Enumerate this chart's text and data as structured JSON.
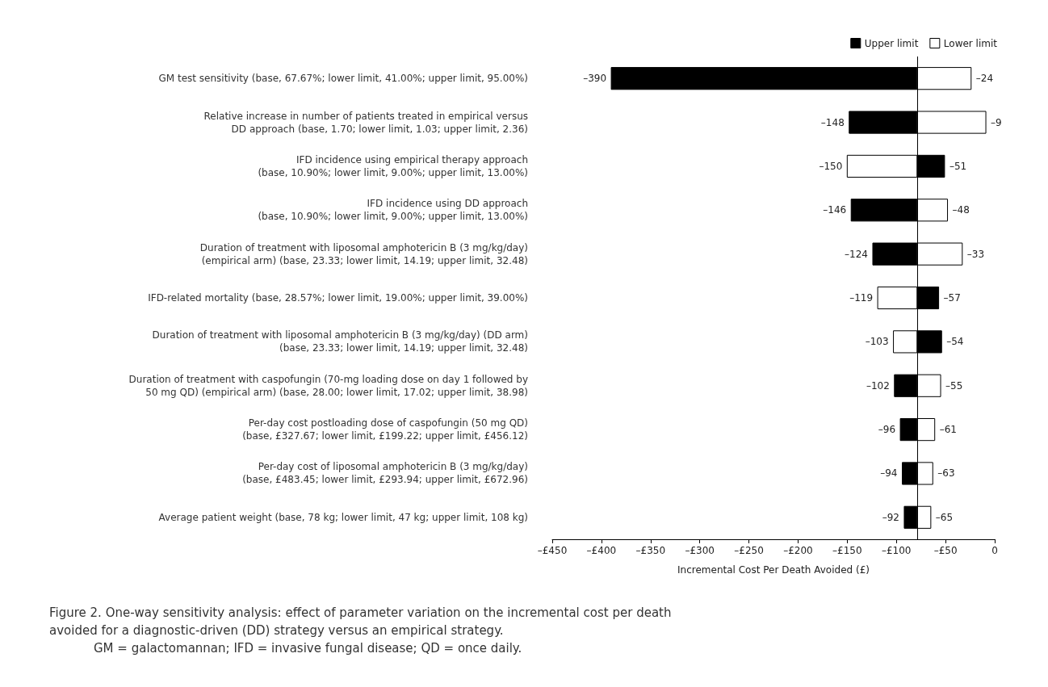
{
  "chart_data": {
    "type": "bar",
    "orientation": "horizontal",
    "title": "Figure 2. One-way sensitivity analysis: effect of parameter variation on the incremental cost per death\navoided for a diagnostic-driven (DD) strategy versus an empirical strategy.",
    "annotations": [
      "GM = galactomannan; IFD = invasive fungal disease; QD = once daily."
    ],
    "xlabel": "Incremental Cost Per Death Avoided (£)",
    "categories": [
      "GM test sensitivity (base, 67.67%; lower limit, 41.00%; upper limit, 95.00%)",
      "Relative increase in number of patients treated in empirical versus\nDD approach (base, 1.70; lower limit, 1.03; upper limit, 2.36)",
      "IFD incidence using empirical therapy approach\n(base, 10.90%; lower limit, 9.00%; upper limit, 13.00%)",
      "IFD incidence using DD approach\n(base, 10.90%; lower limit, 9.00%; upper limit, 13.00%)",
      "Duration of treatment with liposomal amphotericin B (3 mg/kg/day)\n(empirical arm) (base, 23.33; lower limit, 14.19; upper limit, 32.48)",
      "IFD-related mortality (base, 28.57%; lower limit, 19.00%; upper limit, 39.00%)",
      "Duration of treatment with liposomal amphotericin B (3 mg/kg/day) (DD arm)\n(base, 23.33; lower limit, 14.19; upper limit, 32.48)",
      "Duration of treatment with caspofungin (70-mg loading dose on day 1 followed by\n50 mg QD) (empirical arm) (base, 28.00; lower limit, 17.02; upper limit, 38.98)",
      "Per-day cost postloading dose of caspofungin (50 mg QD)\n(base, £327.67; lower limit, £199.22; upper limit, £456.12)",
      "Per-day cost of liposomal amphotericin B (3 mg/kg/day)\n(base, £483.45; lower limit, £293.94; upper limit, £672.96)",
      "Average patient weight (base, 78 kg; lower limit, 47 kg; upper limit, 108 kg)"
    ],
    "series": [
      {
        "name": "Upper limit",
        "color": "#000000",
        "base": [
          -79,
          -79,
          -79,
          -79,
          -79,
          -79,
          -79,
          -79,
          -79,
          -79,
          -79
        ],
        "values": [
          -311,
          -69,
          28,
          -67,
          -45,
          22,
          25,
          -23,
          -17,
          -15,
          -13
        ],
        "value_labels": [
          "–390",
          "–148",
          "–51",
          "–146",
          "–124",
          "–57",
          "–54",
          "–102",
          "–96",
          "–94",
          "–92"
        ]
      },
      {
        "name": "Lower limit",
        "color": "#ffffff",
        "base": [
          -79,
          -79,
          -79,
          -79,
          -79,
          -79,
          -79,
          -79,
          -79,
          -79,
          -79
        ],
        "values": [
          55,
          70,
          -71,
          31,
          46,
          -40,
          -24,
          24,
          18,
          16,
          14
        ],
        "value_labels": [
          "–24",
          "–9",
          "–150",
          "–48",
          "–33",
          "–119",
          "–103",
          "–55",
          "–61",
          "–63",
          "–65"
        ]
      }
    ],
    "xlim": [
      -450,
      0
    ],
    "xticks": [
      {
        "value": -450,
        "label": "–£450"
      },
      {
        "value": -400,
        "label": "–£400"
      },
      {
        "value": -350,
        "label": "–£350"
      },
      {
        "value": -300,
        "label": "–£300"
      },
      {
        "value": -250,
        "label": "–£250"
      },
      {
        "value": -200,
        "label": "–£200"
      },
      {
        "value": -150,
        "label": "–£150"
      },
      {
        "value": -100,
        "label": "–£100"
      },
      {
        "value": -50,
        "label": "–£50"
      },
      0
    ],
    "ref_lines": [
      {
        "axis": "x",
        "value": -79,
        "label": null,
        "color": "#000000"
      }
    ],
    "legend": "top right",
    "grid": false
  }
}
